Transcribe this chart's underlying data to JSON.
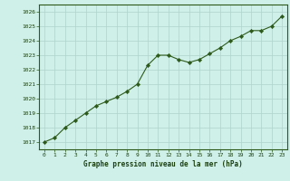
{
  "x": [
    0,
    1,
    2,
    3,
    4,
    5,
    6,
    7,
    8,
    9,
    10,
    11,
    12,
    13,
    14,
    15,
    16,
    17,
    18,
    19,
    20,
    21,
    22,
    23
  ],
  "y": [
    1017.0,
    1017.3,
    1018.0,
    1018.5,
    1019.0,
    1019.5,
    1019.8,
    1020.1,
    1020.5,
    1021.0,
    1022.3,
    1023.0,
    1023.0,
    1022.7,
    1022.5,
    1022.7,
    1023.1,
    1023.5,
    1024.0,
    1024.3,
    1024.7,
    1024.7,
    1025.0,
    1025.7
  ],
  "line_color": "#2d5a1b",
  "marker_color": "#2d5a1b",
  "bg_color": "#cff0e8",
  "grid_color": "#aed4cc",
  "xlabel": "Graphe pression niveau de la mer (hPa)",
  "xlabel_color": "#1a4010",
  "tick_color": "#1a4010",
  "axis_color": "#2d5a1b",
  "ylim_min": 1016.5,
  "ylim_max": 1026.5,
  "xlim_min": -0.5,
  "xlim_max": 23.5,
  "yticks": [
    1017,
    1018,
    1019,
    1020,
    1021,
    1022,
    1023,
    1024,
    1025,
    1026
  ],
  "xticks": [
    0,
    1,
    2,
    3,
    4,
    5,
    6,
    7,
    8,
    9,
    10,
    11,
    12,
    13,
    14,
    15,
    16,
    17,
    18,
    19,
    20,
    21,
    22,
    23
  ]
}
